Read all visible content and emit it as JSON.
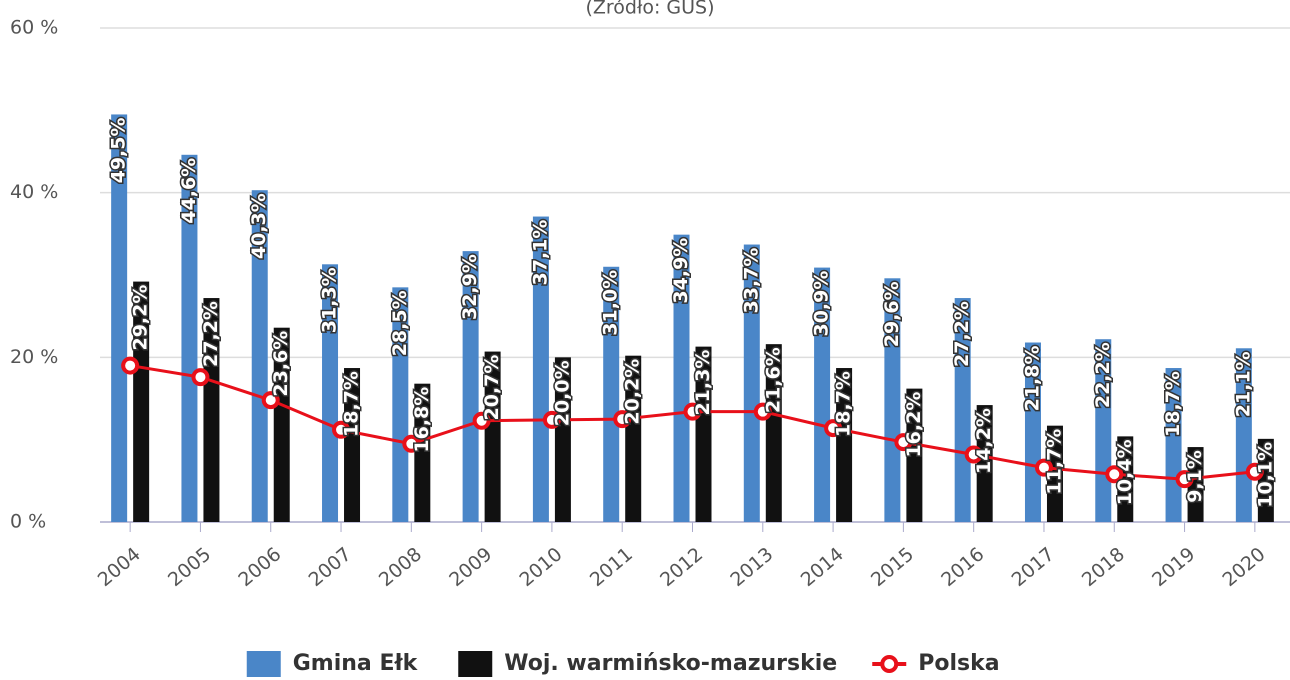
{
  "chart_data": {
    "type": "bar",
    "subtitle": "(Źródło: GUS)",
    "categories": [
      "2004",
      "2005",
      "2006",
      "2007",
      "2008",
      "2009",
      "2010",
      "2011",
      "2012",
      "2013",
      "2014",
      "2015",
      "2016",
      "2017",
      "2018",
      "2019",
      "2020"
    ],
    "series": [
      {
        "name": "Gmina Ełk",
        "color": "#4a86c8",
        "type": "bar",
        "values": [
          49.5,
          44.6,
          40.3,
          31.3,
          28.5,
          32.9,
          37.1,
          31.0,
          34.9,
          33.7,
          30.9,
          29.6,
          27.2,
          21.8,
          22.2,
          18.7,
          21.1
        ],
        "value_labels": [
          "49,5%",
          "44,6%",
          "40,3%",
          "31,3%",
          "28,5%",
          "32,9%",
          "37,1%",
          "31,0%",
          "34,9%",
          "33,7%",
          "30,9%",
          "29,6%",
          "27,2%",
          "21,8%",
          "22,2%",
          "18,7%",
          "21,1%"
        ]
      },
      {
        "name": "Woj. warmińsko-mazurskie",
        "color": "#111111",
        "type": "bar",
        "values": [
          29.2,
          27.2,
          23.6,
          18.7,
          16.8,
          20.7,
          20.0,
          20.2,
          21.3,
          21.6,
          18.7,
          16.2,
          14.2,
          11.7,
          10.4,
          9.1,
          10.1
        ],
        "value_labels": [
          "29,2%",
          "27,2%",
          "23,6%",
          "18,7%",
          "16,8%",
          "20,7%",
          "20,0%",
          "20,2%",
          "21,3%",
          "21,6%",
          "18,7%",
          "16,2%",
          "14,2%",
          "11,7%",
          "10,4%",
          "9,1%",
          "10,1%"
        ]
      },
      {
        "name": "Polska",
        "color": "#e8101a",
        "type": "line",
        "values": [
          19.0,
          17.6,
          14.8,
          11.2,
          9.5,
          12.3,
          12.4,
          12.5,
          13.4,
          13.4,
          11.4,
          9.7,
          8.2,
          6.6,
          5.8,
          5.2,
          6.1
        ]
      }
    ],
    "ylim": [
      0,
      60
    ],
    "yticks": [
      {
        "value": 0,
        "label": "0 %"
      },
      {
        "value": 20,
        "label": "20 %"
      },
      {
        "value": 40,
        "label": "40 %"
      },
      {
        "value": 60,
        "label": "60 %"
      }
    ],
    "grid": true,
    "legend": "bottom"
  }
}
